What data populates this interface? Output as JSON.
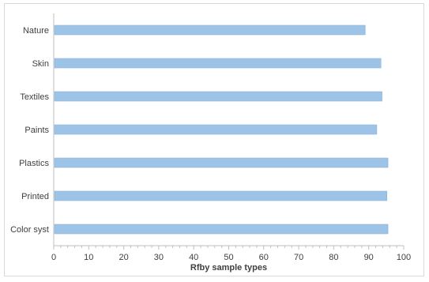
{
  "chart_data": {
    "type": "bar",
    "orientation": "horizontal",
    "categories": [
      "Nature",
      "Skin",
      "Textiles",
      "Paints",
      "Plastics",
      "Printed",
      "Color syst"
    ],
    "values": [
      89,
      93.5,
      93.8,
      92.3,
      95.5,
      95.2,
      95.5
    ],
    "xlabel": "Rfby sample types",
    "ylabel": "",
    "xlim": [
      0,
      100
    ],
    "xticks": [
      0,
      10,
      20,
      30,
      40,
      50,
      60,
      70,
      80,
      90,
      100
    ],
    "minor_ticks_per_major": 5,
    "grid": false,
    "legend": "none",
    "colors": {
      "bar": "#9DC3E6",
      "bar_edge": "#8BB4DA",
      "axis": "#bfbfbf",
      "text": "#404040"
    }
  }
}
